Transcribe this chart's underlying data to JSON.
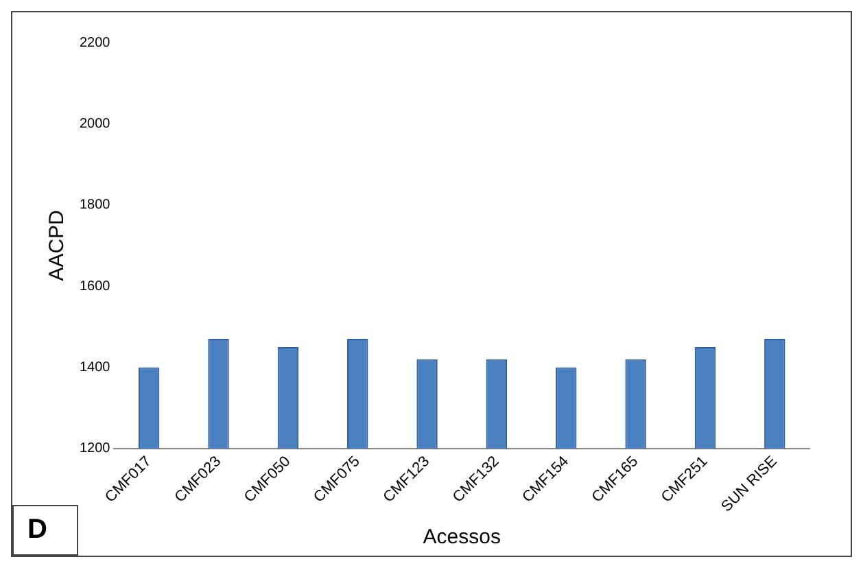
{
  "chart_data": {
    "type": "bar",
    "xlabel": "Acessos",
    "ylabel": "AACPD",
    "annotations": [
      "D"
    ],
    "categories": [
      "CMF017",
      "CMF023",
      "CMF050",
      "CMF075",
      "CMF123",
      "CMF132",
      "CMF154",
      "CMF165",
      "CMF251",
      "SUN RISE"
    ],
    "values": [
      1400,
      1470,
      1450,
      1470,
      1420,
      1420,
      1400,
      1420,
      1450,
      1470
    ],
    "color": "#4a7fc0",
    "ylim": [
      1200,
      2200
    ],
    "yticks": [
      1200,
      1400,
      1600,
      1800,
      2000,
      2200
    ],
    "grid": false,
    "legend": false
  }
}
